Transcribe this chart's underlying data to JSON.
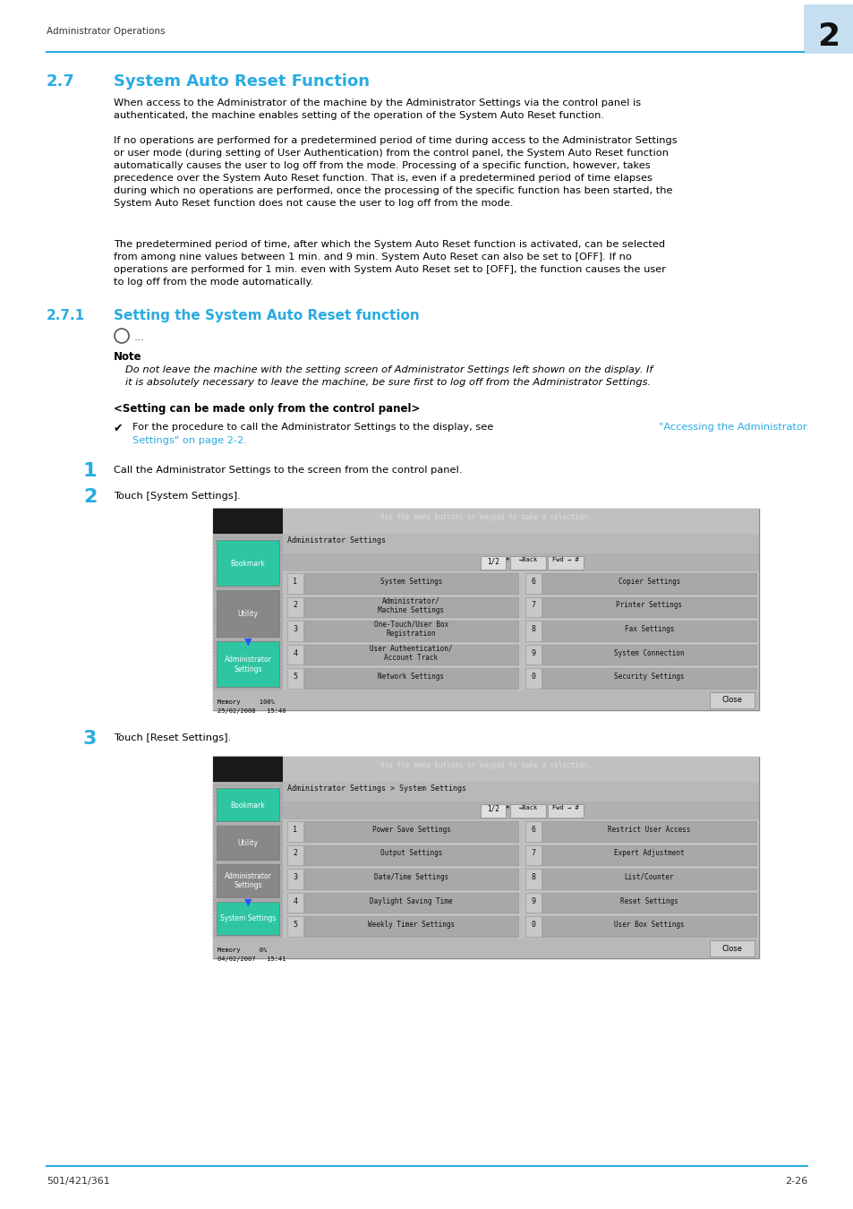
{
  "page_bg": "#ffffff",
  "header_text": "Administrator Operations",
  "header_line_color": "#29abe2",
  "header_number": "2",
  "header_number_bg": "#c5dff0",
  "footer_left": "501/421/361",
  "footer_right": "2-26",
  "footer_line_color": "#29abe2",
  "section_title_num": "2.7",
  "section_title": "System Auto Reset Function",
  "section_color": "#29abe2",
  "para1": "When access to the Administrator of the machine by the Administrator Settings via the control panel is\nauthenticated, the machine enables setting of the operation of the System Auto Reset function.",
  "para2": "If no operations are performed for a predetermined period of time during access to the Administrator Settings\nor user mode (during setting of User Authentication) from the control panel, the System Auto Reset function\nautomatically causes the user to log off from the mode. Processing of a specific function, however, takes\nprecedence over the System Auto Reset function. That is, even if a predetermined period of time elapses\nduring which no operations are performed, once the processing of the specific function has been started, the\nSystem Auto Reset function does not cause the user to log off from the mode.",
  "para3": "The predetermined period of time, after which the System Auto Reset function is activated, can be selected\nfrom among nine values between 1 min. and 9 min. System Auto Reset can also be set to [OFF]. If no\noperations are performed for 1 min. even with System Auto Reset set to [OFF], the function causes the user\nto log off from the mode automatically.",
  "sub_title_num": "2.7.1",
  "sub_title": "Setting the System Auto Reset function",
  "note_label": "Note",
  "note_text": "Do not leave the machine with the setting screen of Administrator Settings left shown on the display. If\nit is absolutely necessary to leave the machine, be sure first to log off from the Administrator Settings.",
  "setting_label": "<Setting can be made only from the control panel>",
  "step1_text": "Call the Administrator Settings to the screen from the control panel.",
  "step2_text": "Touch [System Settings].",
  "step3_text": "Touch [Reset Settings].",
  "link_color": "#29abe2",
  "text_color": "#000000",
  "screen1_menu": [
    [
      "1",
      "System Settings",
      "6",
      "Copier Settings"
    ],
    [
      "2",
      "Administrator/\nMachine Settings",
      "7",
      "Printer Settings"
    ],
    [
      "3",
      "One-Touch/User Box\nRegistration",
      "8",
      "Fax Settings"
    ],
    [
      "4",
      "User Authentication/\nAccount Track",
      "9",
      "System Connection"
    ],
    [
      "5",
      "Network Settings",
      "0",
      "Security Settings"
    ]
  ],
  "screen2_menu": [
    [
      "1",
      "Power Save Settings",
      "6",
      "Restrict User Access"
    ],
    [
      "2",
      "Output Settings",
      "7",
      "Expert Adjustment"
    ],
    [
      "3",
      "Date/Time Settings",
      "8",
      "List/Counter"
    ],
    [
      "4",
      "Daylight Saving Time",
      "9",
      "Reset Settings"
    ],
    [
      "5",
      "Weekly Timer Settings",
      "0",
      "User Box Settings"
    ]
  ]
}
